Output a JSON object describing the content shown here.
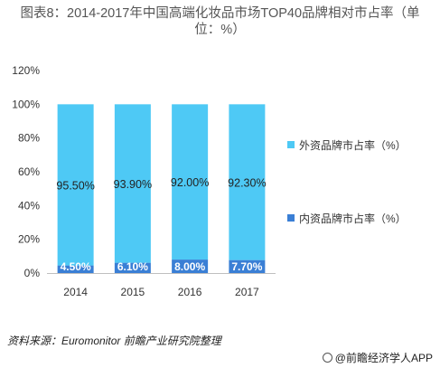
{
  "title": "图表8：2014-2017年中国高端化妆品市场TOP40品牌相对市占率（单位：%）",
  "source": "资料来源：Euromonitor  前瞻产业研究院整理",
  "credit": "@前瞻经济学人APP",
  "colors": {
    "foreign": "#4ec9f5",
    "domestic": "#3a7fd5",
    "axis": "#bfbfbf"
  },
  "chart_data": {
    "type": "bar",
    "stacked": true,
    "categories": [
      "2014",
      "2015",
      "2016",
      "2017"
    ],
    "series": [
      {
        "name": "内资品牌市占率（%）",
        "values": [
          4.5,
          6.1,
          8.0,
          7.7
        ],
        "labels": [
          "4.50%",
          "6.10%",
          "8.00%",
          "7.70%"
        ]
      },
      {
        "name": "外资品牌市占率（%）",
        "values": [
          95.5,
          93.9,
          92.0,
          92.3
        ],
        "labels": [
          "95.50%",
          "93.90%",
          "92.00%",
          "92.30%"
        ]
      }
    ],
    "yticks": [
      "0%",
      "20%",
      "40%",
      "60%",
      "80%",
      "100%",
      "120%"
    ],
    "ylim": [
      0,
      120
    ],
    "legend_position": "right",
    "legend_order": [
      "外资品牌市占率（%）",
      "内资品牌市占率（%）"
    ]
  }
}
